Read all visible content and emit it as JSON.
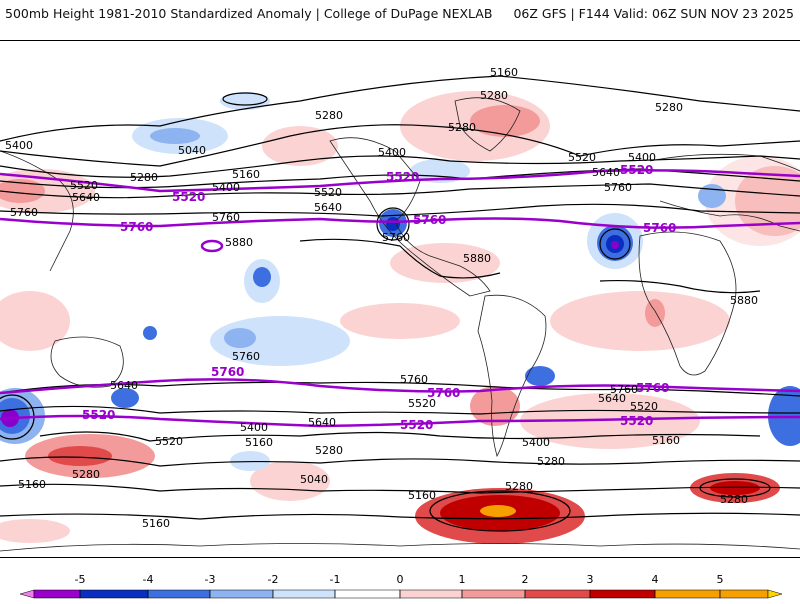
{
  "header": {
    "title": "500mb Height 1981-2010 Standardized Anomaly | College of DuPage NEXLAB",
    "run_info": "06Z GFS | F144 Valid: 06Z SUN NOV 23 2025"
  },
  "map": {
    "contour_labels": [
      "5160",
      "5280",
      "5400",
      "5520",
      "5640",
      "5760",
      "5880",
      "5040"
    ],
    "highlight_labels": [
      "5520",
      "5760"
    ],
    "colors": {
      "highlight_contour": "#9900cc",
      "contour": "#000000",
      "neg1": "#cfe2fb",
      "neg2": "#8db3f0",
      "neg3": "#3d6fe0",
      "neg4": "#0a2ec0",
      "neg5": "#8800cc",
      "pos1": "#fbd3d3",
      "pos2": "#f39b9b",
      "pos3": "#e04a4a",
      "pos4": "#c00000",
      "pos5": "#f5a000"
    }
  },
  "colorbar": {
    "ticks": [
      "-5",
      "-4",
      "-3",
      "-2",
      "-1",
      "0",
      "1",
      "2",
      "3",
      "4",
      "5"
    ],
    "colors": [
      "#ee80ee",
      "#9a00cc",
      "#0a2ec0",
      "#3d6fe0",
      "#8db3f0",
      "#cfe2fb",
      "#ffffff",
      "#fbd3d3",
      "#f39b9b",
      "#e04a4a",
      "#c00000",
      "#f5a000",
      "#ffd400"
    ]
  }
}
